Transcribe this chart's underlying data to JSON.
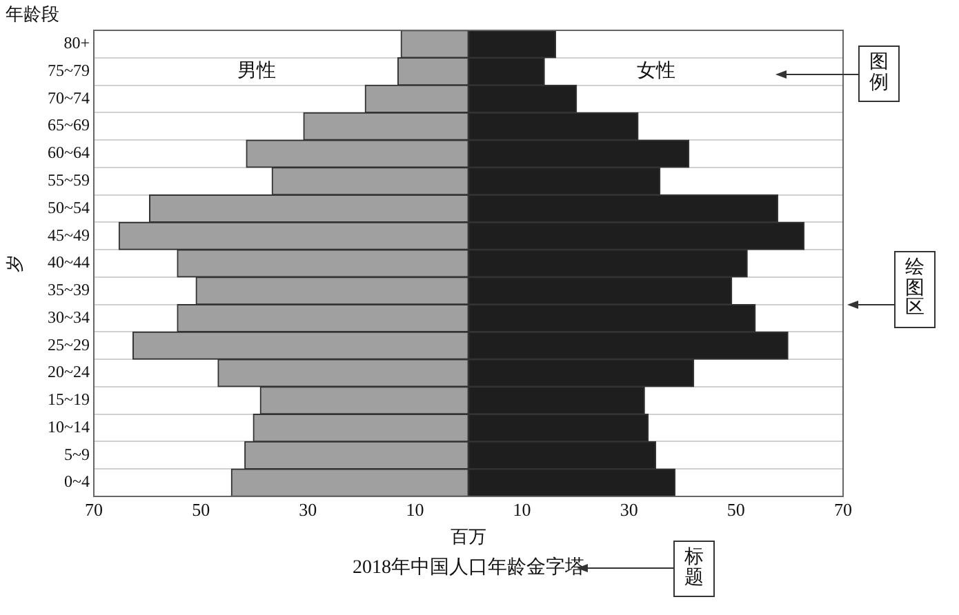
{
  "chart_data": {
    "type": "bar",
    "orientation": "horizontal",
    "title": "2018年中国人口年龄金字塔",
    "xlabel": "百万",
    "ylabel": "岁",
    "annotations": [
      "年龄段",
      "图例",
      "绘图区",
      "标题"
    ],
    "categories": [
      "80+",
      "75~79",
      "70~74",
      "65~69",
      "60~64",
      "55~59",
      "50~54",
      "45~49",
      "40~44",
      "35~39",
      "30~34",
      "25~29",
      "20~24",
      "15~19",
      "10~14",
      "5~9",
      "0~4"
    ],
    "series": [
      {
        "name": "男性",
        "color": "#a0a0a0",
        "values": [
          -12.6,
          -13.2,
          -19.3,
          -30.8,
          -41.5,
          -36.7,
          -59.6,
          -65.3,
          -54.4,
          -50.9,
          -54.4,
          -62.7,
          -46.8,
          -38.9,
          -40.2,
          -41.8,
          -44.3
        ]
      },
      {
        "name": "女性",
        "color": "#1e1e1e",
        "values": [
          16.3,
          14.2,
          20.2,
          31.7,
          41.2,
          35.8,
          57.8,
          62.7,
          52.1,
          49.2,
          53.6,
          59.7,
          42.1,
          32.9,
          33.6,
          35.0,
          38.6
        ]
      }
    ],
    "xlim": [
      -70,
      70
    ],
    "xticks": [
      {
        "value": -70,
        "label": "70"
      },
      {
        "value": -50,
        "label": "50"
      },
      {
        "value": -30,
        "label": "30"
      },
      {
        "value": -10,
        "label": "10"
      },
      10,
      30,
      50,
      70
    ],
    "stacked": true,
    "grid": "y"
  }
}
